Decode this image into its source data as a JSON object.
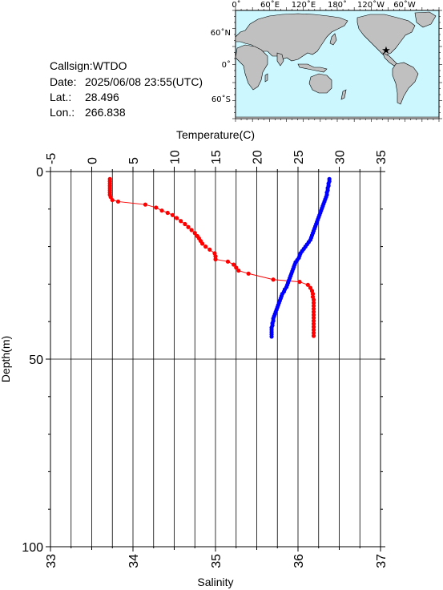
{
  "info": {
    "callsign": "Callsign:WTDO",
    "date_label": "Date:",
    "date_value": "2025/06/08 23:55(UTC)",
    "lat_label": "Lat.:",
    "lat_value": "28.496",
    "lon_label": "Lon.:",
    "lon_value": "266.838"
  },
  "map": {
    "ocean_color": "#ccf7ff",
    "land_color": "#c0c0c0",
    "marker_color": "#ff0000",
    "x_tick_labels": [
      "0˚",
      "60˚E",
      "120˚E",
      "180˚",
      "120˚W",
      "60˚W"
    ],
    "y_tick_labels": [
      "60˚N",
      "0˚",
      "60˚S"
    ]
  },
  "chart_data": {
    "type": "line",
    "depth_axis": {
      "label": "Depth(m)",
      "range": [
        0,
        100
      ],
      "ticks": [
        "0",
        "50",
        "100"
      ],
      "inverted": true
    },
    "temperature_axis": {
      "label": "Temperature(C)",
      "range": [
        -5,
        35
      ],
      "ticks": [
        "-5",
        "0",
        "5",
        "10",
        "15",
        "20",
        "25",
        "30",
        "35"
      ]
    },
    "salinity_axis": {
      "label": "Salinity",
      "range": [
        33,
        37
      ],
      "ticks": [
        "33",
        "34",
        "35",
        "36",
        "37"
      ]
    },
    "grid": true,
    "temperature_series": {
      "color": "#ff0000",
      "points": [
        [
          2.2,
          2.0
        ],
        [
          2.2,
          2.6
        ],
        [
          2.2,
          3.2
        ],
        [
          2.2,
          3.8
        ],
        [
          2.2,
          4.4
        ],
        [
          2.2,
          5.0
        ],
        [
          2.2,
          5.6
        ],
        [
          2.2,
          6.2
        ],
        [
          2.3,
          6.8
        ],
        [
          2.5,
          7.6
        ],
        [
          3.2,
          8.0
        ],
        [
          6.5,
          8.8
        ],
        [
          7.8,
          9.6
        ],
        [
          8.5,
          10.4
        ],
        [
          9.2,
          11.0
        ],
        [
          9.8,
          11.6
        ],
        [
          10.3,
          12.4
        ],
        [
          10.8,
          13.2
        ],
        [
          11.3,
          14.0
        ],
        [
          11.7,
          14.8
        ],
        [
          12.1,
          15.6
        ],
        [
          12.5,
          16.4
        ],
        [
          12.8,
          17.2
        ],
        [
          13.0,
          17.8
        ],
        [
          13.2,
          18.5
        ],
        [
          13.4,
          19.2
        ],
        [
          13.8,
          20.0
        ],
        [
          14.3,
          20.8
        ],
        [
          14.9,
          21.8
        ],
        [
          15.0,
          22.6
        ],
        [
          15.0,
          23.4
        ],
        [
          16.5,
          24.0
        ],
        [
          17.2,
          24.8
        ],
        [
          17.5,
          25.6
        ],
        [
          17.8,
          26.4
        ],
        [
          19.0,
          27.2
        ],
        [
          22.0,
          28.8
        ],
        [
          25.2,
          29.4
        ],
        [
          26.2,
          30.2
        ],
        [
          26.5,
          31.0
        ],
        [
          26.7,
          31.8
        ],
        [
          26.8,
          32.6
        ],
        [
          26.8,
          33.4
        ],
        [
          26.9,
          34.2
        ],
        [
          26.9,
          35.0
        ],
        [
          26.9,
          35.8
        ],
        [
          26.9,
          36.6
        ],
        [
          26.9,
          37.4
        ],
        [
          26.9,
          38.2
        ],
        [
          26.9,
          39.0
        ],
        [
          26.9,
          39.8
        ],
        [
          26.9,
          40.6
        ],
        [
          26.9,
          41.4
        ],
        [
          26.9,
          42.2
        ],
        [
          26.9,
          43.0
        ],
        [
          26.9,
          43.8
        ]
      ]
    },
    "salinity_series": {
      "color": "#0000ff",
      "points": [
        [
          36.38,
          2.0
        ],
        [
          36.38,
          2.6
        ],
        [
          36.37,
          3.2
        ],
        [
          36.37,
          3.8
        ],
        [
          36.36,
          4.4
        ],
        [
          36.36,
          5.0
        ],
        [
          36.35,
          5.6
        ],
        [
          36.35,
          6.2
        ],
        [
          36.34,
          6.8
        ],
        [
          36.33,
          7.4
        ],
        [
          36.32,
          8.0
        ],
        [
          36.31,
          8.6
        ],
        [
          36.3,
          9.2
        ],
        [
          36.29,
          9.8
        ],
        [
          36.28,
          10.4
        ],
        [
          36.27,
          11.0
        ],
        [
          36.26,
          11.6
        ],
        [
          36.25,
          12.2
        ],
        [
          36.24,
          12.8
        ],
        [
          36.23,
          13.4
        ],
        [
          36.22,
          14.0
        ],
        [
          36.21,
          14.6
        ],
        [
          36.2,
          15.2
        ],
        [
          36.19,
          15.8
        ],
        [
          36.18,
          16.4
        ],
        [
          36.17,
          17.0
        ],
        [
          36.16,
          17.6
        ],
        [
          36.15,
          18.2
        ],
        [
          36.13,
          18.8
        ],
        [
          36.11,
          19.4
        ],
        [
          36.09,
          20.0
        ],
        [
          36.07,
          20.6
        ],
        [
          36.05,
          21.2
        ],
        [
          36.03,
          21.8
        ],
        [
          36.02,
          22.4
        ],
        [
          36.01,
          23.0
        ],
        [
          35.99,
          23.6
        ],
        [
          35.97,
          24.2
        ],
        [
          35.96,
          24.8
        ],
        [
          35.95,
          25.4
        ],
        [
          35.94,
          26.0
        ],
        [
          35.93,
          26.6
        ],
        [
          35.92,
          27.2
        ],
        [
          35.91,
          27.8
        ],
        [
          35.9,
          28.4
        ],
        [
          35.89,
          29.0
        ],
        [
          35.88,
          29.6
        ],
        [
          35.87,
          30.2
        ],
        [
          35.86,
          30.8
        ],
        [
          35.84,
          31.4
        ],
        [
          35.83,
          32.0
        ],
        [
          35.81,
          32.6
        ],
        [
          35.8,
          33.2
        ],
        [
          35.79,
          33.8
        ],
        [
          35.78,
          34.4
        ],
        [
          35.77,
          35.0
        ],
        [
          35.76,
          35.6
        ],
        [
          35.75,
          36.2
        ],
        [
          35.74,
          36.8
        ],
        [
          35.73,
          37.4
        ],
        [
          35.72,
          38.0
        ],
        [
          35.71,
          38.6
        ],
        [
          35.7,
          39.2
        ],
        [
          35.7,
          39.8
        ],
        [
          35.69,
          40.4
        ],
        [
          35.69,
          41.0
        ],
        [
          35.68,
          41.6
        ],
        [
          35.68,
          42.2
        ],
        [
          35.68,
          42.8
        ],
        [
          35.68,
          43.4
        ],
        [
          35.68,
          44.0
        ]
      ]
    }
  }
}
